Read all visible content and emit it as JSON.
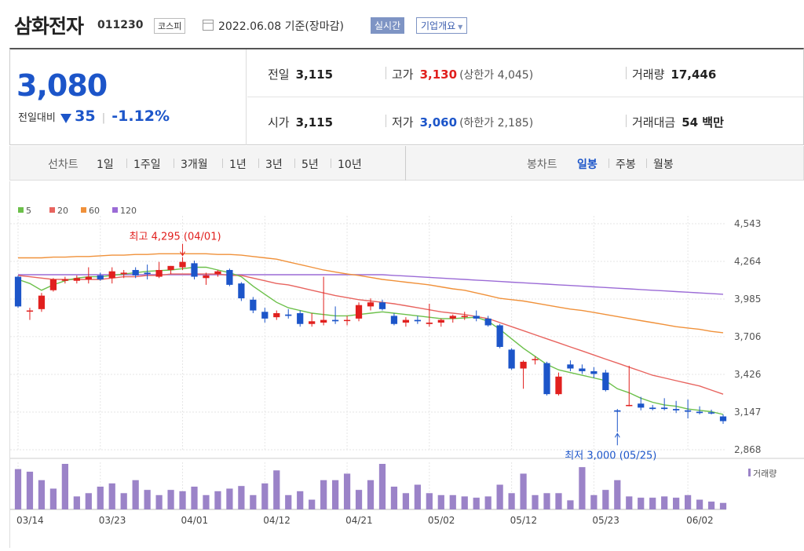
{
  "header": {
    "stock_name": "삼화전자",
    "stock_code": "011230",
    "market": "코스피",
    "date": "2022.06.08 기준(장마감)",
    "realtime_label": "실시간",
    "company_label": "기업개요"
  },
  "price": {
    "current": "3,080",
    "change_label": "전일대비",
    "change_value": "35",
    "change_pct": "-1.12%"
  },
  "stats": {
    "prev_close_label": "전일",
    "prev_close": "3,115",
    "high_label": "고가",
    "high": "3,130",
    "upper_limit": "(상한가 4,045)",
    "volume_label": "거래량",
    "volume": "17,446",
    "open_label": "시가",
    "open": "3,115",
    "low_label": "저가",
    "low": "3,060",
    "lower_limit": "(하한가 2,185)",
    "amount_label": "거래대금",
    "amount": "54 백만"
  },
  "periods": {
    "line_chart_label": "선차트",
    "line_options": [
      "1일",
      "1주일",
      "3개월",
      "1년",
      "3년",
      "5년",
      "10년"
    ],
    "candle_label": "봉차트",
    "candle_options": [
      "일봉",
      "주봉",
      "월봉"
    ],
    "candle_active": "일봉"
  },
  "colors": {
    "up": "#e1201e",
    "down": "#1c55c9",
    "ma5": "#6cc04a",
    "ma20": "#e8645f",
    "ma60": "#f0913a",
    "ma120": "#9b6bd6",
    "volume": "#9b83c8"
  },
  "chart_data": {
    "type": "candlestick",
    "legend": [
      {
        "name": "5",
        "color": "#6cc04a"
      },
      {
        "name": "20",
        "color": "#e8645f"
      },
      {
        "name": "60",
        "color": "#f0913a"
      },
      {
        "name": "120",
        "color": "#9b6bd6"
      }
    ],
    "y_ticks": [
      "4,543",
      "4,264",
      "3,985",
      "3,706",
      "3,426",
      "3,147",
      "2,868"
    ],
    "ylim": [
      2868,
      4543
    ],
    "x_ticks": [
      "03/14",
      "03/23",
      "04/01",
      "04/12",
      "04/21",
      "05/02",
      "05/12",
      "05/23",
      "06/02"
    ],
    "volume_label": "거래량",
    "annotations": {
      "high": "최고 4,295 (04/01)",
      "low": "최저 3,000 (05/25)"
    },
    "candles": [
      {
        "date": "03/14",
        "o": 4150,
        "h": 4160,
        "l": 3920,
        "c": 3930
      },
      {
        "date": "03/15",
        "o": 3900,
        "h": 3920,
        "l": 3830,
        "c": 3900
      },
      {
        "date": "03/16",
        "o": 3910,
        "h": 4030,
        "l": 3890,
        "c": 4010
      },
      {
        "date": "03/17",
        "o": 4050,
        "h": 4140,
        "l": 4040,
        "c": 4130
      },
      {
        "date": "03/18",
        "o": 4120,
        "h": 4150,
        "l": 4100,
        "c": 4130
      },
      {
        "date": "03/21",
        "o": 4120,
        "h": 4160,
        "l": 4100,
        "c": 4140
      },
      {
        "date": "03/22",
        "o": 4130,
        "h": 4220,
        "l": 4100,
        "c": 4150
      },
      {
        "date": "03/23",
        "o": 4160,
        "h": 4180,
        "l": 4120,
        "c": 4130
      },
      {
        "date": "03/24",
        "o": 4140,
        "h": 4220,
        "l": 4100,
        "c": 4190
      },
      {
        "date": "03/25",
        "o": 4170,
        "h": 4200,
        "l": 4140,
        "c": 4180
      },
      {
        "date": "03/28",
        "o": 4200,
        "h": 4220,
        "l": 4140,
        "c": 4160
      },
      {
        "date": "03/29",
        "o": 4180,
        "h": 4240,
        "l": 4130,
        "c": 4170
      },
      {
        "date": "03/30",
        "o": 4150,
        "h": 4260,
        "l": 4140,
        "c": 4200
      },
      {
        "date": "03/31",
        "o": 4200,
        "h": 4230,
        "l": 4170,
        "c": 4230
      },
      {
        "date": "04/01",
        "o": 4220,
        "h": 4295,
        "l": 4200,
        "c": 4260
      },
      {
        "date": "04/04",
        "o": 4250,
        "h": 4270,
        "l": 4130,
        "c": 4150
      },
      {
        "date": "04/05",
        "o": 4140,
        "h": 4180,
        "l": 4090,
        "c": 4160
      },
      {
        "date": "04/06",
        "o": 4170,
        "h": 4200,
        "l": 4150,
        "c": 4190
      },
      {
        "date": "04/07",
        "o": 4200,
        "h": 4210,
        "l": 4080,
        "c": 4090
      },
      {
        "date": "04/08",
        "o": 4100,
        "h": 4110,
        "l": 3970,
        "c": 3990
      },
      {
        "date": "04/11",
        "o": 3980,
        "h": 4000,
        "l": 3880,
        "c": 3900
      },
      {
        "date": "04/12",
        "o": 3890,
        "h": 3920,
        "l": 3810,
        "c": 3840
      },
      {
        "date": "04/13",
        "o": 3850,
        "h": 3900,
        "l": 3830,
        "c": 3880
      },
      {
        "date": "04/14",
        "o": 3870,
        "h": 3910,
        "l": 3840,
        "c": 3860
      },
      {
        "date": "04/15",
        "o": 3880,
        "h": 3900,
        "l": 3780,
        "c": 3800
      },
      {
        "date": "04/18",
        "o": 3800,
        "h": 3880,
        "l": 3780,
        "c": 3820
      },
      {
        "date": "04/19",
        "o": 3810,
        "h": 4150,
        "l": 3790,
        "c": 3830
      },
      {
        "date": "04/20",
        "o": 3830,
        "h": 3930,
        "l": 3800,
        "c": 3820
      },
      {
        "date": "04/21",
        "o": 3830,
        "h": 3860,
        "l": 3790,
        "c": 3830
      },
      {
        "date": "04/22",
        "o": 3840,
        "h": 3960,
        "l": 3820,
        "c": 3940
      },
      {
        "date": "04/25",
        "o": 3930,
        "h": 3990,
        "l": 3900,
        "c": 3960
      },
      {
        "date": "04/26",
        "o": 3960,
        "h": 3980,
        "l": 3900,
        "c": 3910
      },
      {
        "date": "04/27",
        "o": 3860,
        "h": 3880,
        "l": 3790,
        "c": 3800
      },
      {
        "date": "04/28",
        "o": 3810,
        "h": 3850,
        "l": 3780,
        "c": 3830
      },
      {
        "date": "04/29",
        "o": 3830,
        "h": 3860,
        "l": 3800,
        "c": 3820
      },
      {
        "date": "05/02",
        "o": 3800,
        "h": 3950,
        "l": 3780,
        "c": 3810
      },
      {
        "date": "05/03",
        "o": 3810,
        "h": 3840,
        "l": 3780,
        "c": 3830
      },
      {
        "date": "05/04",
        "o": 3840,
        "h": 3870,
        "l": 3810,
        "c": 3860
      },
      {
        "date": "05/06",
        "o": 3860,
        "h": 3890,
        "l": 3830,
        "c": 3860
      },
      {
        "date": "05/09",
        "o": 3860,
        "h": 3900,
        "l": 3820,
        "c": 3840
      },
      {
        "date": "05/10",
        "o": 3840,
        "h": 3860,
        "l": 3780,
        "c": 3790
      },
      {
        "date": "05/11",
        "o": 3790,
        "h": 3800,
        "l": 3620,
        "c": 3630
      },
      {
        "date": "05/12",
        "o": 3610,
        "h": 3620,
        "l": 3460,
        "c": 3470
      },
      {
        "date": "05/13",
        "o": 3470,
        "h": 3530,
        "l": 3320,
        "c": 3520
      },
      {
        "date": "05/16",
        "o": 3540,
        "h": 3560,
        "l": 3500,
        "c": 3540
      },
      {
        "date": "05/17",
        "o": 3510,
        "h": 3520,
        "l": 3270,
        "c": 3280
      },
      {
        "date": "05/18",
        "o": 3280,
        "h": 3440,
        "l": 3270,
        "c": 3410
      },
      {
        "date": "05/19",
        "o": 3500,
        "h": 3530,
        "l": 3450,
        "c": 3470
      },
      {
        "date": "05/20",
        "o": 3470,
        "h": 3500,
        "l": 3430,
        "c": 3450
      },
      {
        "date": "05/23",
        "o": 3450,
        "h": 3480,
        "l": 3400,
        "c": 3430
      },
      {
        "date": "05/24",
        "o": 3440,
        "h": 3460,
        "l": 3300,
        "c": 3310
      },
      {
        "date": "05/25",
        "o": 3160,
        "h": 3170,
        "l": 3000,
        "c": 3150
      },
      {
        "date": "05/26",
        "o": 3200,
        "h": 3490,
        "l": 3190,
        "c": 3200
      },
      {
        "date": "05/27",
        "o": 3210,
        "h": 3260,
        "l": 3160,
        "c": 3180
      },
      {
        "date": "05/30",
        "o": 3180,
        "h": 3200,
        "l": 3160,
        "c": 3170
      },
      {
        "date": "05/31",
        "o": 3180,
        "h": 3250,
        "l": 3160,
        "c": 3170
      },
      {
        "date": "06/01",
        "o": 3170,
        "h": 3230,
        "l": 3140,
        "c": 3160
      },
      {
        "date": "06/02",
        "o": 3160,
        "h": 3240,
        "l": 3100,
        "c": 3150
      },
      {
        "date": "06/03",
        "o": 3150,
        "h": 3190,
        "l": 3130,
        "c": 3140
      },
      {
        "date": "06/07",
        "o": 3145,
        "h": 3165,
        "l": 3130,
        "c": 3140
      },
      {
        "date": "06/08",
        "o": 3115,
        "h": 3130,
        "l": 3060,
        "c": 3080
      }
    ],
    "volumes": [
      62,
      58,
      45,
      32,
      70,
      20,
      25,
      35,
      40,
      25,
      45,
      30,
      22,
      30,
      28,
      35,
      22,
      28,
      32,
      36,
      22,
      40,
      60,
      22,
      28,
      15,
      45,
      45,
      55,
      30,
      45,
      70,
      35,
      25,
      38,
      25,
      22,
      22,
      20,
      18,
      20,
      38,
      25,
      55,
      22,
      25,
      25,
      14,
      65,
      22,
      30,
      45,
      20,
      18,
      18,
      20,
      18,
      22,
      15,
      12,
      10
    ],
    "ma5": [
      4130,
      4100,
      4050,
      4090,
      4120,
      4140,
      4150,
      4150,
      4160,
      4170,
      4180,
      4190,
      4195,
      4200,
      4210,
      4220,
      4220,
      4200,
      4180,
      4150,
      4080,
      4020,
      3960,
      3920,
      3900,
      3880,
      3870,
      3860,
      3860,
      3870,
      3880,
      3890,
      3880,
      3870,
      3860,
      3850,
      3840,
      3840,
      3845,
      3850,
      3820,
      3760,
      3690,
      3620,
      3560,
      3500,
      3460,
      3440,
      3420,
      3400,
      3380,
      3320,
      3290,
      3250,
      3220,
      3200,
      3190,
      3170,
      3160,
      3150,
      3130
    ],
    "ma20": [
      4160,
      4150,
      4140,
      4130,
      4130,
      4130,
      4130,
      4130,
      4140,
      4150,
      4150,
      4160,
      4160,
      4170,
      4170,
      4170,
      4170,
      4170,
      4160,
      4160,
      4140,
      4120,
      4100,
      4090,
      4070,
      4050,
      4030,
      4010,
      3995,
      3980,
      3970,
      3960,
      3950,
      3935,
      3920,
      3905,
      3890,
      3880,
      3870,
      3855,
      3840,
      3810,
      3780,
      3750,
      3720,
      3690,
      3660,
      3630,
      3600,
      3570,
      3540,
      3510,
      3480,
      3450,
      3420,
      3400,
      3380,
      3360,
      3340,
      3310,
      3280
    ],
    "ma60": [
      4290,
      4290,
      4290,
      4295,
      4295,
      4300,
      4300,
      4305,
      4310,
      4310,
      4315,
      4315,
      4320,
      4320,
      4320,
      4320,
      4320,
      4315,
      4315,
      4310,
      4300,
      4290,
      4280,
      4260,
      4240,
      4220,
      4200,
      4185,
      4170,
      4160,
      4145,
      4130,
      4120,
      4110,
      4100,
      4090,
      4075,
      4060,
      4050,
      4030,
      4010,
      3990,
      3980,
      3970,
      3955,
      3940,
      3925,
      3910,
      3900,
      3885,
      3870,
      3855,
      3840,
      3825,
      3810,
      3795,
      3780,
      3770,
      3760,
      3745,
      3735
    ],
    "ma120": [
      4165,
      4165,
      4165,
      4165,
      4165,
      4165,
      4165,
      4165,
      4165,
      4165,
      4165,
      4165,
      4165,
      4165,
      4165,
      4165,
      4165,
      4165,
      4165,
      4165,
      4165,
      4165,
      4165,
      4165,
      4165,
      4165,
      4165,
      4165,
      4165,
      4165,
      4165,
      4165,
      4160,
      4155,
      4150,
      4145,
      4140,
      4135,
      4130,
      4125,
      4120,
      4115,
      4110,
      4105,
      4100,
      4095,
      4090,
      4085,
      4080,
      4075,
      4070,
      4065,
      4060,
      4055,
      4050,
      4045,
      4040,
      4035,
      4030,
      4025,
      4020
    ]
  }
}
